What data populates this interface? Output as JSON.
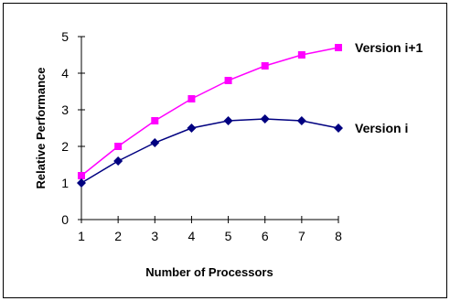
{
  "chart_data": {
    "type": "line",
    "title": "",
    "xlabel": "Number of Processors",
    "ylabel": "Relative Performance",
    "x": [
      1,
      2,
      3,
      4,
      5,
      6,
      7,
      8
    ],
    "xlim": [
      1,
      8
    ],
    "ylim": [
      0,
      5
    ],
    "yticks": [
      0,
      1,
      2,
      3,
      4,
      5
    ],
    "grid": false,
    "series": [
      {
        "name": "Version i+1",
        "color": "#ff00ff",
        "marker": "square",
        "values": [
          1.2,
          2.0,
          2.7,
          3.3,
          3.8,
          4.2,
          4.5,
          4.7
        ]
      },
      {
        "name": "Version i",
        "color": "#000080",
        "marker": "diamond",
        "values": [
          1.0,
          1.6,
          2.1,
          2.5,
          2.7,
          2.75,
          2.7,
          2.5
        ]
      }
    ]
  }
}
